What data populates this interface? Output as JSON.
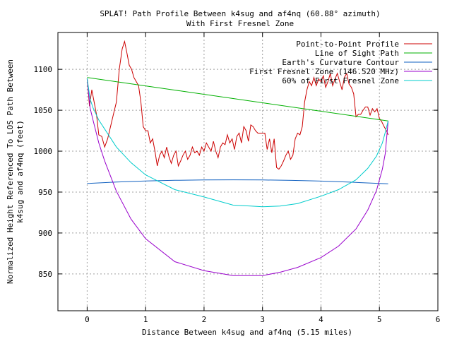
{
  "chart_data": {
    "type": "line",
    "title": "SPLAT! Path Profile Between k4sug and af4nq (60.88° azimuth)",
    "subtitle": "With First Fresnel Zone",
    "xlabel": "Distance Between k4sug and af4nq (5.15 miles)",
    "ylabel_line1": "Normalized Height Referenced To LOS Path Between",
    "ylabel_line2": "k4sug and af4nq (feet)",
    "xlim": [
      -0.5,
      6
    ],
    "ylim": [
      805,
      1145
    ],
    "xticks": [
      0,
      1,
      2,
      3,
      4,
      5,
      6
    ],
    "yticks": [
      850,
      900,
      950,
      1000,
      1050,
      1100
    ],
    "grid": true,
    "legend_position": "top-right",
    "series": [
      {
        "name": "Point-to-Point Profile",
        "color": "#cc0000",
        "x": [
          0,
          0.04,
          0.08,
          0.12,
          0.16,
          0.2,
          0.25,
          0.3,
          0.35,
          0.4,
          0.45,
          0.5,
          0.55,
          0.6,
          0.64,
          0.68,
          0.72,
          0.76,
          0.8,
          0.84,
          0.88,
          0.92,
          0.96,
          1.0,
          1.04,
          1.08,
          1.12,
          1.16,
          1.2,
          1.24,
          1.28,
          1.32,
          1.36,
          1.4,
          1.44,
          1.48,
          1.52,
          1.56,
          1.6,
          1.64,
          1.68,
          1.72,
          1.76,
          1.8,
          1.84,
          1.88,
          1.92,
          1.96,
          2.0,
          2.04,
          2.08,
          2.12,
          2.16,
          2.2,
          2.24,
          2.28,
          2.32,
          2.36,
          2.4,
          2.44,
          2.48,
          2.52,
          2.56,
          2.6,
          2.64,
          2.68,
          2.72,
          2.76,
          2.8,
          2.84,
          2.88,
          2.92,
          2.96,
          3.0,
          3.04,
          3.08,
          3.12,
          3.16,
          3.2,
          3.24,
          3.28,
          3.32,
          3.36,
          3.4,
          3.44,
          3.48,
          3.52,
          3.56,
          3.6,
          3.64,
          3.68,
          3.72,
          3.76,
          3.8,
          3.84,
          3.88,
          3.92,
          3.96,
          4.0,
          4.04,
          4.08,
          4.12,
          4.16,
          4.2,
          4.24,
          4.28,
          4.32,
          4.36,
          4.4,
          4.44,
          4.48,
          4.52,
          4.56,
          4.6,
          4.64,
          4.68,
          4.72,
          4.76,
          4.8,
          4.84,
          4.88,
          4.92,
          4.96,
          5.0,
          5.04,
          5.08,
          5.12,
          5.15
        ],
        "y": [
          1089,
          1055,
          1075,
          1060,
          1045,
          1020,
          1018,
          1005,
          1015,
          1030,
          1045,
          1060,
          1100,
          1125,
          1134,
          1120,
          1105,
          1100,
          1090,
          1085,
          1080,
          1060,
          1030,
          1025,
          1025,
          1010,
          1015,
          1000,
          982,
          995,
          1000,
          992,
          1005,
          993,
          985,
          995,
          1000,
          982,
          988,
          995,
          1000,
          990,
          995,
          1005,
          998,
          1000,
          995,
          1005,
          1000,
          1010,
          1005,
          1000,
          1012,
          1000,
          992,
          1005,
          1010,
          1008,
          1020,
          1010,
          1015,
          1002,
          1018,
          1022,
          1010,
          1030,
          1025,
          1012,
          1032,
          1030,
          1025,
          1022,
          1022,
          1022,
          1022,
          1002,
          1015,
          998,
          1015,
          980,
          978,
          982,
          988,
          995,
          1000,
          990,
          995,
          1015,
          1022,
          1020,
          1030,
          1060,
          1075,
          1085,
          1080,
          1090,
          1080,
          1088,
          1085,
          1092,
          1078,
          1085,
          1095,
          1080,
          1088,
          1095,
          1085,
          1075,
          1090,
          1095,
          1082,
          1078,
          1070,
          1042,
          1045,
          1045,
          1050,
          1054,
          1054,
          1044,
          1052,
          1048,
          1052,
          1040,
          1036,
          1030,
          1025,
          1020
        ]
      },
      {
        "name": "Line of Sight Path",
        "color": "#00b000",
        "x": [
          0,
          5.15
        ],
        "y": [
          1090,
          1037
        ]
      },
      {
        "name": "Earth's Curvature Contour",
        "color": "#1060c0",
        "x": [
          0,
          0.5,
          1,
          1.5,
          2,
          2.5,
          3,
          3.5,
          4,
          4.5,
          5,
          5.15
        ],
        "y": [
          960.5,
          962.2,
          963.5,
          964.4,
          964.9,
          965.0,
          964.8,
          964.3,
          963.4,
          962.1,
          960.5,
          960.2
        ]
      },
      {
        "name": "First Fresnel Zone (146.520 MHz)",
        "color": "#9900cc",
        "x": [
          0,
          0.05,
          0.1,
          0.2,
          0.3,
          0.5,
          0.75,
          1.0,
          1.5,
          2.0,
          2.5,
          2.8,
          3.0,
          3.3,
          3.6,
          4.0,
          4.3,
          4.6,
          4.8,
          4.95,
          5.05,
          5.1,
          5.15
        ],
        "y": [
          1089,
          1053,
          1038,
          1010,
          988,
          951,
          917,
          893,
          865,
          854,
          848,
          848,
          848,
          852,
          858,
          870,
          884,
          905,
          928,
          952,
          978,
          997,
          1037
        ]
      },
      {
        "name": "60% of First Fresnel Zone",
        "color": "#00cccc",
        "x": [
          0,
          0.05,
          0.1,
          0.2,
          0.3,
          0.5,
          0.75,
          1.0,
          1.5,
          2.0,
          2.5,
          2.8,
          3.0,
          3.3,
          3.6,
          4.0,
          4.3,
          4.6,
          4.8,
          4.95,
          5.05,
          5.1,
          5.15
        ],
        "y": [
          1089,
          1064,
          1053,
          1038,
          1027,
          1005,
          986,
          971,
          953,
          944,
          934,
          933,
          932,
          933,
          936,
          945,
          953,
          965,
          979,
          994,
          1010,
          1023,
          1037
        ]
      }
    ]
  }
}
